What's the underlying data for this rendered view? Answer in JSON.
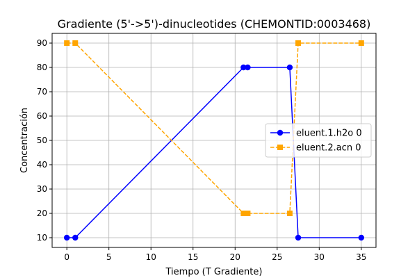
{
  "chart_data": {
    "type": "line",
    "title": "Gradiente (5'->5')-dinucleotides (CHEMONTID:0003468)",
    "xlabel": "Tiempo (T Gradiente)",
    "ylabel": "Concentración",
    "xlim": [
      -1.75,
      36.75
    ],
    "ylim": [
      6,
      94
    ],
    "xticks": [
      0,
      5,
      10,
      15,
      20,
      25,
      30,
      35
    ],
    "yticks": [
      10,
      20,
      30,
      40,
      50,
      60,
      70,
      80,
      90
    ],
    "grid": true,
    "legend_position": "center-right",
    "series": [
      {
        "name": "eluent.1.h2o 0",
        "color": "#0000ff",
        "line_style": "solid",
        "marker": "circle",
        "x": [
          0,
          1,
          21,
          21.5,
          26.5,
          27.5,
          35
        ],
        "y": [
          10,
          10,
          80,
          80,
          80,
          10,
          10
        ]
      },
      {
        "name": "eluent.2.acn 0",
        "color": "#ffa500",
        "line_style": "dashed",
        "marker": "square",
        "x": [
          0,
          1,
          21,
          21.5,
          26.5,
          27.5,
          35
        ],
        "y": [
          90,
          90,
          20,
          20,
          20,
          90,
          90
        ]
      }
    ]
  }
}
